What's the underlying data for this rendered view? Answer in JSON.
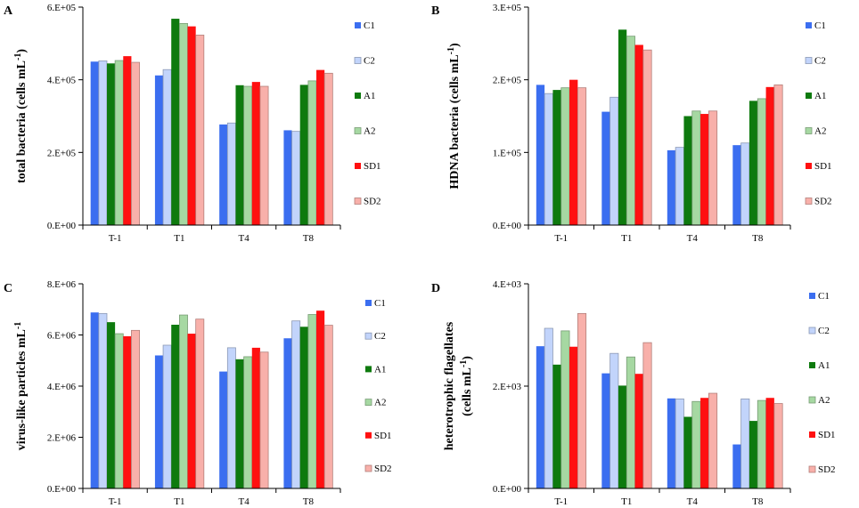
{
  "figure": {
    "categories": [
      "T-1",
      "T1",
      "T4",
      "T8"
    ],
    "series": [
      {
        "name": "C1",
        "fill": "#3b6ef0",
        "light": false
      },
      {
        "name": "C2",
        "fill": "#c2d4fb",
        "light": true
      },
      {
        "name": "A1",
        "fill": "#0e7a0e",
        "light": false
      },
      {
        "name": "A2",
        "fill": "#a6d8a2",
        "light": true
      },
      {
        "name": "SD1",
        "fill": "#ff1010",
        "light": false
      },
      {
        "name": "SD2",
        "fill": "#f8b0aa",
        "light": true
      }
    ]
  },
  "chart_data": [
    {
      "panel": "A",
      "type": "bar",
      "ylabel": "total bacteria (cells mL",
      "ylabel_sup": "-1",
      "ylabel_tail": ")",
      "ylim": [
        0,
        600000
      ],
      "yticks": [
        0,
        200000,
        400000,
        600000
      ],
      "ytick_labels": [
        "0.E+00",
        "2.E+05",
        "4.E+05",
        "6.E+05"
      ],
      "categories": [
        "T-1",
        "T1",
        "T4",
        "T8"
      ],
      "series": [
        {
          "name": "C1",
          "values": [
            450000,
            412000,
            277000,
            261000
          ]
        },
        {
          "name": "C2",
          "values": [
            452000,
            428000,
            281000,
            258000
          ]
        },
        {
          "name": "A1",
          "values": [
            445000,
            568000,
            385000,
            386000
          ]
        },
        {
          "name": "A2",
          "values": [
            453000,
            555000,
            382000,
            397000
          ]
        },
        {
          "name": "SD1",
          "values": [
            465000,
            547000,
            394000,
            427000
          ]
        },
        {
          "name": "SD2",
          "values": [
            448000,
            523000,
            382000,
            418000
          ]
        }
      ]
    },
    {
      "panel": "B",
      "type": "bar",
      "ylabel": "HDNA bacteria (cells mL",
      "ylabel_sup": "-1",
      "ylabel_tail": ")",
      "ylim": [
        0,
        300000
      ],
      "yticks": [
        0,
        100000,
        200000,
        300000
      ],
      "ytick_labels": [
        "0.E+00",
        "1.E+05",
        "2.E+05",
        "3.E+05"
      ],
      "categories": [
        "T-1",
        "T1",
        "T4",
        "T8"
      ],
      "series": [
        {
          "name": "C1",
          "values": [
            193000,
            156000,
            103000,
            110000
          ]
        },
        {
          "name": "C2",
          "values": [
            181000,
            176000,
            107000,
            113000
          ]
        },
        {
          "name": "A1",
          "values": [
            186000,
            269000,
            150000,
            171000
          ]
        },
        {
          "name": "A2",
          "values": [
            189000,
            260000,
            157000,
            174000
          ]
        },
        {
          "name": "SD1",
          "values": [
            200000,
            248000,
            153000,
            190000
          ]
        },
        {
          "name": "SD2",
          "values": [
            189000,
            241000,
            157000,
            193000
          ]
        }
      ]
    },
    {
      "panel": "C",
      "type": "bar",
      "ylabel": "virus-like particles mL",
      "ylabel_sup": "-1",
      "ylabel_tail": "",
      "ylim": [
        0,
        8000000
      ],
      "yticks": [
        0,
        2000000,
        4000000,
        6000000,
        8000000
      ],
      "ytick_labels": [
        "0.E+00",
        "2.E+06",
        "4.E+06",
        "6.E+06",
        "8.E+06"
      ],
      "categories": [
        "T-1",
        "T1",
        "T4",
        "T8"
      ],
      "series": [
        {
          "name": "C1",
          "values": [
            6880000,
            5200000,
            4570000,
            5870000
          ]
        },
        {
          "name": "C2",
          "values": [
            6840000,
            5600000,
            5500000,
            6550000
          ]
        },
        {
          "name": "A1",
          "values": [
            6500000,
            6400000,
            5050000,
            6320000
          ]
        },
        {
          "name": "A2",
          "values": [
            6050000,
            6780000,
            5150000,
            6800000
          ]
        },
        {
          "name": "SD1",
          "values": [
            5950000,
            6050000,
            5500000,
            6950000
          ]
        },
        {
          "name": "SD2",
          "values": [
            6180000,
            6620000,
            5330000,
            6380000
          ]
        }
      ]
    },
    {
      "panel": "D",
      "type": "bar",
      "ylabel": "heterotrophic  flagellates",
      "ylabel2": "(cells mL",
      "ylabel_sup": "-1",
      "ylabel_tail": ")",
      "ylim": [
        0,
        4000
      ],
      "yticks": [
        0,
        2000,
        4000
      ],
      "ytick_labels": [
        "0.E+00",
        "2.E+03",
        "4.E+03"
      ],
      "categories": [
        "T-1",
        "T1",
        "T4",
        "T8"
      ],
      "series": [
        {
          "name": "C1",
          "values": [
            2780,
            2250,
            1760,
            860
          ]
        },
        {
          "name": "C2",
          "values": [
            3130,
            2640,
            1750,
            1750
          ]
        },
        {
          "name": "A1",
          "values": [
            2420,
            2010,
            1400,
            1320
          ]
        },
        {
          "name": "A2",
          "values": [
            3080,
            2570,
            1700,
            1720
          ]
        },
        {
          "name": "SD1",
          "values": [
            2770,
            2240,
            1770,
            1770
          ]
        },
        {
          "name": "SD2",
          "values": [
            3420,
            2850,
            1860,
            1660
          ]
        }
      ]
    }
  ]
}
